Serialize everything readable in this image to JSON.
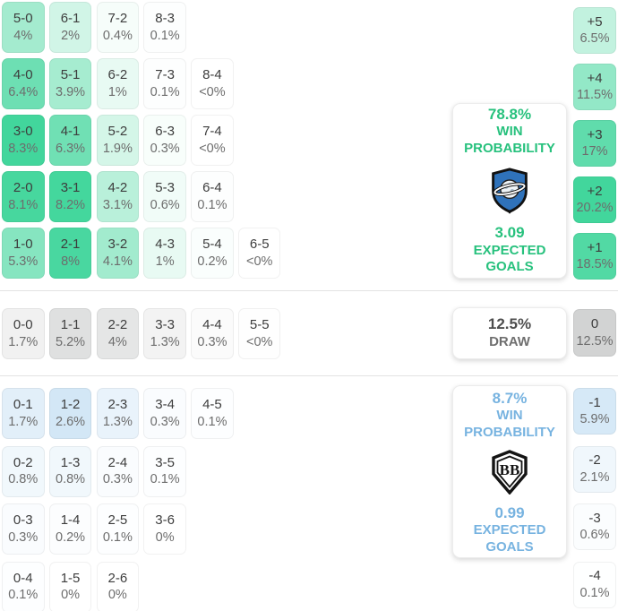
{
  "panels": {
    "home": {
      "win_pct": "78.8%",
      "win_label": "WIN PROBABILITY",
      "expected_goals": "3.09",
      "expected_goals_label": "EXPECTED GOALS",
      "crest_icon": "home-team-crest-icon",
      "accent_color": "#27c17d"
    },
    "draw": {
      "pct": "12.5%",
      "label": "DRAW",
      "value_color": "#4d4d4d",
      "label_color": "#6f6f6f"
    },
    "away": {
      "win_pct": "8.7%",
      "win_label": "WIN PROBABILITY",
      "expected_goals": "0.99",
      "expected_goals_label": "EXPECTED GOALS",
      "crest_icon": "away-team-crest-icon",
      "accent_color": "#77b3e0"
    }
  },
  "colors": {
    "grid_green_base": "#42d69c",
    "grid_blue_base": "#72b3e3",
    "grid_gray_base": "#cecece",
    "divider": "#e3e3e3",
    "cell_score_text": "#3d3d3d",
    "cell_pct_text": "#6d6d6d"
  },
  "chart_data": {
    "type": "heatmap",
    "title": "Correct score probability matrix with win/draw/loss probabilities and goal-difference distribution",
    "legend_position": "right",
    "scale_note": "cell tint proportional to probability; score cells scaled to max 8.3%, goal-diff cells to max 20.2%",
    "home_win": {
      "rows": [
        [
          {
            "score": "5-0",
            "pct": "4%",
            "bg": "#a4ebcf"
          },
          {
            "score": "6-1",
            "pct": "2%",
            "bg": "#d1f5e7"
          },
          {
            "score": "7-2",
            "pct": "0.4%",
            "bg": "#f6fdfa"
          },
          {
            "score": "8-3",
            "pct": "0.1%",
            "bg": "#fdfefe"
          }
        ],
        [
          {
            "score": "4-0",
            "pct": "6.4%",
            "bg": "#6ddfb3"
          },
          {
            "score": "5-1",
            "pct": "3.9%",
            "bg": "#a6ecd0"
          },
          {
            "score": "6-2",
            "pct": "1%",
            "bg": "#e8faf3"
          },
          {
            "score": "7-3",
            "pct": "0.1%",
            "bg": "#fdfefe"
          },
          {
            "score": "8-4",
            "pct": "<0%",
            "bg": "#ffffff"
          }
        ],
        [
          {
            "score": "3-0",
            "pct": "8.3%",
            "bg": "#42d69c"
          },
          {
            "score": "4-1",
            "pct": "6.3%",
            "bg": "#70e0b4"
          },
          {
            "score": "5-2",
            "pct": "1.9%",
            "bg": "#d4f6e8"
          },
          {
            "score": "6-3",
            "pct": "0.3%",
            "bg": "#f8fefb"
          },
          {
            "score": "7-4",
            "pct": "<0%",
            "bg": "#ffffff"
          }
        ],
        [
          {
            "score": "2-0",
            "pct": "8.1%",
            "bg": "#47d79e"
          },
          {
            "score": "3-1",
            "pct": "8.2%",
            "bg": "#44d79d"
          },
          {
            "score": "4-2",
            "pct": "3.1%",
            "bg": "#b9f0da"
          },
          {
            "score": "5-3",
            "pct": "0.6%",
            "bg": "#f1fcf8"
          },
          {
            "score": "6-4",
            "pct": "0.1%",
            "bg": "#fdfefe"
          }
        ],
        [
          {
            "score": "1-0",
            "pct": "5.3%",
            "bg": "#86e5c0"
          },
          {
            "score": "2-1",
            "pct": "8%",
            "bg": "#49d7a0"
          },
          {
            "score": "3-2",
            "pct": "4.1%",
            "bg": "#a2ebce"
          },
          {
            "score": "4-3",
            "pct": "1%",
            "bg": "#e8faf3"
          },
          {
            "score": "5-4",
            "pct": "0.2%",
            "bg": "#fafefd"
          },
          {
            "score": "6-5",
            "pct": "<0%",
            "bg": "#ffffff"
          }
        ]
      ]
    },
    "draw": {
      "rows": [
        [
          {
            "score": "0-0",
            "pct": "1.7%",
            "bg": "#f1f1f1"
          },
          {
            "score": "1-1",
            "pct": "5.2%",
            "bg": "#dfe0e0"
          },
          {
            "score": "2-2",
            "pct": "4%",
            "bg": "#e5e6e6"
          },
          {
            "score": "3-3",
            "pct": "1.3%",
            "bg": "#f3f3f3"
          },
          {
            "score": "4-4",
            "pct": "0.3%",
            "bg": "#fbfbfb"
          },
          {
            "score": "5-5",
            "pct": "<0%",
            "bg": "#fefefe"
          }
        ]
      ]
    },
    "away_win": {
      "rows": [
        [
          {
            "score": "0-1",
            "pct": "1.7%",
            "bg": "#e2eff9"
          },
          {
            "score": "1-2",
            "pct": "2.6%",
            "bg": "#d3e7f6"
          },
          {
            "score": "2-3",
            "pct": "1.3%",
            "bg": "#e9f3fb"
          },
          {
            "score": "3-4",
            "pct": "0.3%",
            "bg": "#fafcfe"
          },
          {
            "score": "4-5",
            "pct": "0.1%",
            "bg": "#fdfeff"
          }
        ],
        [
          {
            "score": "0-2",
            "pct": "0.8%",
            "bg": "#f1f8fc"
          },
          {
            "score": "1-3",
            "pct": "0.8%",
            "bg": "#f1f8fc"
          },
          {
            "score": "2-4",
            "pct": "0.3%",
            "bg": "#fafcfe"
          },
          {
            "score": "3-5",
            "pct": "0.1%",
            "bg": "#fdfeff"
          }
        ],
        [
          {
            "score": "0-3",
            "pct": "0.3%",
            "bg": "#fafcfe"
          },
          {
            "score": "1-4",
            "pct": "0.2%",
            "bg": "#fcfdfe"
          },
          {
            "score": "2-5",
            "pct": "0.1%",
            "bg": "#fdfeff"
          },
          {
            "score": "3-6",
            "pct": "0%",
            "bg": "#ffffff"
          }
        ],
        [
          {
            "score": "0-4",
            "pct": "0.1%",
            "bg": "#fdfeff"
          },
          {
            "score": "1-5",
            "pct": "0%",
            "bg": "#ffffff"
          },
          {
            "score": "2-6",
            "pct": "0%",
            "bg": "#ffffff"
          }
        ]
      ]
    },
    "goal_diff": {
      "positive": [
        {
          "score": "+5",
          "pct": "6.5%",
          "bg": "#c2f2df"
        },
        {
          "score": "+4",
          "pct": "11.5%",
          "bg": "#93e8c7"
        },
        {
          "score": "+3",
          "pct": "17%",
          "bg": "#60dcac"
        },
        {
          "score": "+2",
          "pct": "20.2%",
          "bg": "#42d69c"
        },
        {
          "score": "+1",
          "pct": "18.5%",
          "bg": "#52d9a4"
        }
      ],
      "zero": [
        {
          "score": "0",
          "pct": "12.5%",
          "bg": "#d2d3d3"
        }
      ],
      "negative": [
        {
          "score": "-1",
          "pct": "5.9%",
          "bg": "#d6e9f7"
        },
        {
          "score": "-2",
          "pct": "2.1%",
          "bg": "#f0f7fc"
        },
        {
          "score": "-3",
          "pct": "0.6%",
          "bg": "#fbfdfe"
        },
        {
          "score": "-4",
          "pct": "0.1%",
          "bg": "#feffff"
        }
      ]
    }
  }
}
